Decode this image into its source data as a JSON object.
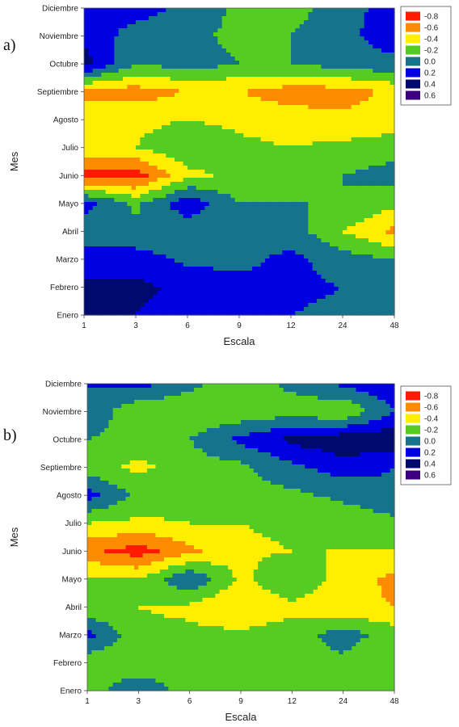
{
  "chart_data": [
    {
      "type": "heatmap",
      "panel_label": "a)",
      "xlabel": "Escala",
      "ylabel": "Mes",
      "x": [
        "1",
        "3",
        "6",
        "9",
        "12",
        "24",
        "48"
      ],
      "y": [
        "Enero",
        "Febrero",
        "Marzo",
        "Abril",
        "Mayo",
        "Junio",
        "Julio",
        "Agosto",
        "Septiembre",
        "Octubre",
        "Noviembre",
        "Diciembre"
      ],
      "values": [
        [
          0.3,
          0.3,
          0.2,
          0.1,
          0.1,
          0.05,
          0.0
        ],
        [
          0.35,
          0.35,
          0.25,
          0.15,
          0.15,
          0.1,
          0.05
        ],
        [
          0.2,
          0.2,
          0.05,
          0.05,
          0.15,
          0.0,
          -0.1
        ],
        [
          -0.05,
          -0.05,
          -0.05,
          0.0,
          0.0,
          -0.3,
          -0.55
        ],
        [
          0.2,
          -0.15,
          0.25,
          -0.1,
          -0.1,
          -0.1,
          -0.25
        ],
        [
          -0.8,
          -0.8,
          -0.35,
          -0.25,
          -0.2,
          -0.1,
          0.0
        ],
        [
          -0.35,
          -0.3,
          -0.15,
          -0.25,
          -0.3,
          -0.25,
          -0.2
        ],
        [
          -0.35,
          -0.35,
          -0.3,
          -0.35,
          -0.4,
          -0.45,
          -0.4
        ],
        [
          -0.6,
          -0.6,
          -0.5,
          -0.5,
          -0.6,
          -0.6,
          -0.45
        ],
        [
          0.4,
          -0.1,
          0.0,
          -0.1,
          -0.1,
          0.0,
          0.05
        ],
        [
          0.25,
          0.0,
          -0.05,
          -0.15,
          -0.1,
          0.05,
          0.2
        ],
        [
          0.2,
          0.2,
          0.05,
          -0.15,
          -0.2,
          0.05,
          0.15
        ]
      ],
      "legend": {
        "levels": [
          -0.8,
          -0.6,
          -0.4,
          -0.2,
          0.0,
          0.2,
          0.4,
          0.6
        ],
        "labels": [
          "-0.8",
          "-0.6",
          "-0.4",
          "-0.2",
          "0.0",
          "0.2",
          "0.4",
          "0.6"
        ],
        "colors": [
          "#ff1a00",
          "#ff8c00",
          "#ffee00",
          "#55cc22",
          "#16738c",
          "#0000e0",
          "#000a6e",
          "#3a0080"
        ],
        "placement": "right"
      }
    },
    {
      "type": "heatmap",
      "panel_label": "b)",
      "xlabel": "Escala",
      "ylabel": "Mes",
      "x": [
        "1",
        "3",
        "6",
        "9",
        "12",
        "24",
        "48"
      ],
      "y": [
        "Enero",
        "Febrero",
        "Marzo",
        "Abril",
        "Mayo",
        "Junio",
        "Julio",
        "Agosto",
        "Septiembre",
        "Octubre",
        "Noviembre",
        "Diciembre"
      ],
      "values": [
        [
          -0.2,
          0.1,
          -0.2,
          -0.3,
          -0.3,
          -0.2,
          -0.3
        ],
        [
          -0.25,
          -0.3,
          -0.25,
          -0.25,
          -0.2,
          -0.15,
          -0.3
        ],
        [
          0.2,
          -0.25,
          -0.25,
          -0.25,
          -0.2,
          0.0,
          -0.2
        ],
        [
          -0.3,
          -0.3,
          -0.35,
          -0.5,
          -0.35,
          -0.45,
          -0.5
        ],
        [
          -0.25,
          -0.3,
          0.1,
          -0.35,
          -0.1,
          -0.4,
          -0.55
        ],
        [
          -0.65,
          -0.8,
          -0.55,
          -0.35,
          -0.3,
          -0.3,
          -0.3
        ],
        [
          -0.3,
          -0.35,
          -0.3,
          -0.3,
          -0.25,
          -0.25,
          -0.15
        ],
        [
          0.2,
          -0.15,
          -0.15,
          -0.15,
          -0.15,
          -0.05,
          0.05
        ],
        [
          -0.2,
          -0.35,
          -0.2,
          -0.15,
          0.05,
          0.2,
          0.1
        ],
        [
          -0.1,
          -0.2,
          -0.1,
          0.15,
          0.35,
          0.45,
          0.45
        ],
        [
          0.1,
          -0.3,
          -0.25,
          -0.25,
          -0.2,
          -0.3,
          0.1
        ],
        [
          0.1,
          0.2,
          -0.05,
          -0.2,
          -0.05,
          0.15,
          0.25
        ]
      ],
      "legend": {
        "levels": [
          -0.8,
          -0.6,
          -0.4,
          -0.2,
          0.0,
          0.2,
          0.4,
          0.6
        ],
        "labels": [
          "-0.8",
          "-0.6",
          "-0.4",
          "-0.2",
          "0.0",
          "0.2",
          "0.4",
          "0.6"
        ],
        "colors": [
          "#ff1a00",
          "#ff8c00",
          "#ffee00",
          "#55cc22",
          "#16738c",
          "#0000e0",
          "#000a6e",
          "#3a0080"
        ],
        "placement": "right"
      }
    }
  ]
}
